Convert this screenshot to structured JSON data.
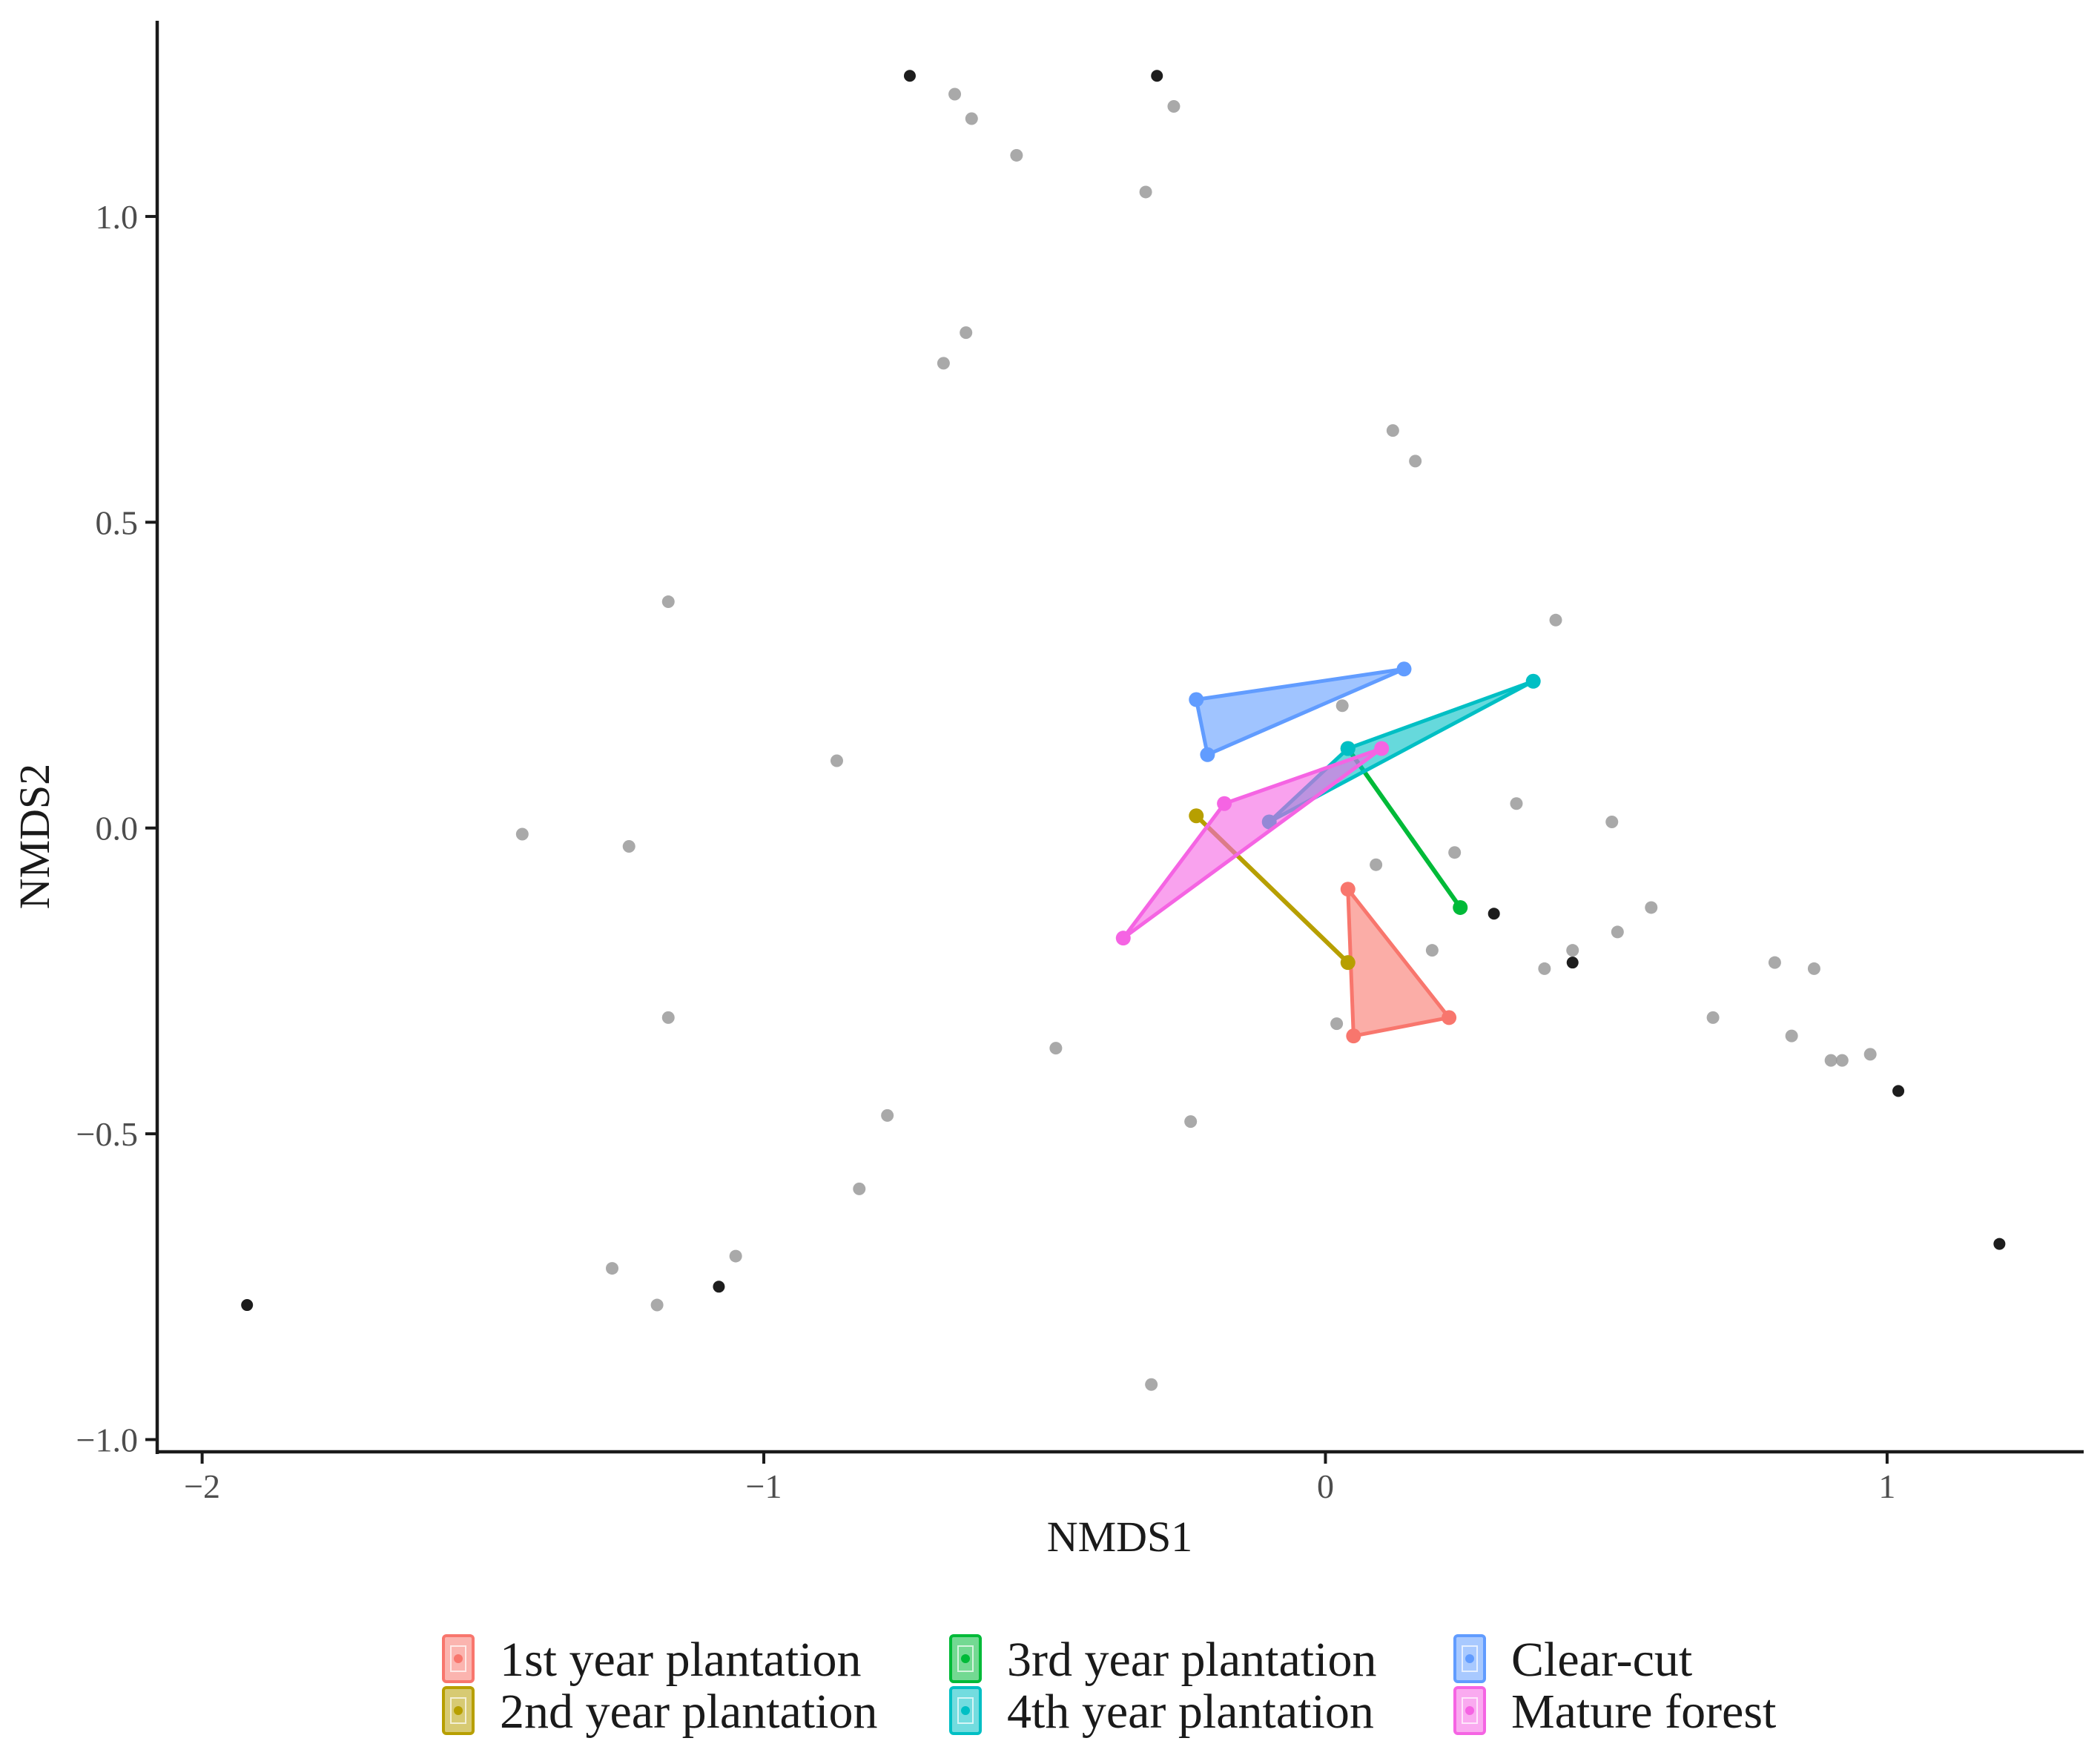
{
  "chart_data": {
    "type": "scatter",
    "title": "",
    "xlabel": "NMDS1",
    "ylabel": "NMDS2",
    "xlim": [
      -2.08,
      1.35
    ],
    "ylim": [
      -1.02,
      1.32
    ],
    "x_ticks": [
      -2,
      -1,
      0,
      1
    ],
    "x_tick_labels": [
      "−2",
      "−1",
      "0",
      "1"
    ],
    "y_ticks": [
      -1.0,
      -0.5,
      0.0,
      0.5,
      1.0
    ],
    "y_tick_labels": [
      "−1.0",
      "−0.5",
      "0.0",
      "0.5",
      "1.0"
    ],
    "grid": false,
    "legend_position": "bottom",
    "species_points": [
      {
        "x": -0.74,
        "y": 1.23,
        "dark": true
      },
      {
        "x": -0.66,
        "y": 1.2
      },
      {
        "x": -0.63,
        "y": 1.16
      },
      {
        "x": -0.55,
        "y": 1.1
      },
      {
        "x": -0.3,
        "y": 1.23,
        "dark": true
      },
      {
        "x": -0.27,
        "y": 1.18
      },
      {
        "x": -0.32,
        "y": 1.04
      },
      {
        "x": -0.64,
        "y": 0.81
      },
      {
        "x": -0.68,
        "y": 0.76
      },
      {
        "x": 0.12,
        "y": 0.65
      },
      {
        "x": 0.16,
        "y": 0.6
      },
      {
        "x": -1.17,
        "y": 0.37
      },
      {
        "x": 0.41,
        "y": 0.34
      },
      {
        "x": 0.03,
        "y": 0.2
      },
      {
        "x": -0.87,
        "y": 0.11
      },
      {
        "x": 0.34,
        "y": 0.04
      },
      {
        "x": 0.51,
        "y": 0.01
      },
      {
        "x": -1.43,
        "y": -0.01
      },
      {
        "x": -1.24,
        "y": -0.03
      },
      {
        "x": 0.23,
        "y": -0.04
      },
      {
        "x": 0.09,
        "y": -0.06
      },
      {
        "x": 0.3,
        "y": -0.14,
        "dark": true
      },
      {
        "x": 0.58,
        "y": -0.13
      },
      {
        "x": 0.52,
        "y": -0.17
      },
      {
        "x": 0.44,
        "y": -0.2
      },
      {
        "x": 0.44,
        "y": -0.22,
        "dark": true
      },
      {
        "x": 0.19,
        "y": -0.2
      },
      {
        "x": 0.39,
        "y": -0.23
      },
      {
        "x": 0.8,
        "y": -0.22
      },
      {
        "x": 0.87,
        "y": -0.23
      },
      {
        "x": -1.17,
        "y": -0.31
      },
      {
        "x": 0.69,
        "y": -0.31
      },
      {
        "x": 0.02,
        "y": -0.32
      },
      {
        "x": 0.83,
        "y": -0.34
      },
      {
        "x": -0.48,
        "y": -0.36
      },
      {
        "x": 0.9,
        "y": -0.38
      },
      {
        "x": 0.92,
        "y": -0.38
      },
      {
        "x": 0.97,
        "y": -0.37
      },
      {
        "x": 1.02,
        "y": -0.43,
        "dark": true
      },
      {
        "x": -0.78,
        "y": -0.47
      },
      {
        "x": -0.24,
        "y": -0.48
      },
      {
        "x": -0.83,
        "y": -0.59
      },
      {
        "x": -1.27,
        "y": -0.72
      },
      {
        "x": -1.05,
        "y": -0.7
      },
      {
        "x": -1.08,
        "y": -0.75,
        "dark": true
      },
      {
        "x": -1.19,
        "y": -0.78
      },
      {
        "x": -1.92,
        "y": -0.78,
        "dark": true
      },
      {
        "x": 1.2,
        "y": -0.68,
        "dark": true
      },
      {
        "x": -0.31,
        "y": -0.91
      }
    ],
    "series": [
      {
        "name": "1st year plantation",
        "color": "#F8766D",
        "points": [
          {
            "x": 0.04,
            "y": -0.1
          },
          {
            "x": 0.22,
            "y": -0.31
          },
          {
            "x": 0.05,
            "y": -0.34
          }
        ]
      },
      {
        "name": "2nd year plantation",
        "color": "#B79F00",
        "points": [
          {
            "x": -0.23,
            "y": 0.02
          },
          {
            "x": 0.04,
            "y": -0.22
          }
        ]
      },
      {
        "name": "3rd year plantation",
        "color": "#00BA38",
        "points": [
          {
            "x": 0.04,
            "y": 0.13
          },
          {
            "x": 0.24,
            "y": -0.13
          }
        ]
      },
      {
        "name": "4th year plantation",
        "color": "#00BFC4",
        "points": [
          {
            "x": 0.37,
            "y": 0.24
          },
          {
            "x": 0.04,
            "y": 0.13
          },
          {
            "x": -0.1,
            "y": 0.01
          }
        ]
      },
      {
        "name": "Clear-cut",
        "color": "#619CFF",
        "points": [
          {
            "x": -0.23,
            "y": 0.21
          },
          {
            "x": 0.14,
            "y": 0.26
          },
          {
            "x": -0.21,
            "y": 0.12
          }
        ]
      },
      {
        "name": "Mature forest",
        "color": "#F564E3",
        "points": [
          {
            "x": -0.18,
            "y": 0.04
          },
          {
            "x": 0.1,
            "y": 0.13
          },
          {
            "x": -0.36,
            "y": -0.18
          }
        ]
      }
    ]
  }
}
